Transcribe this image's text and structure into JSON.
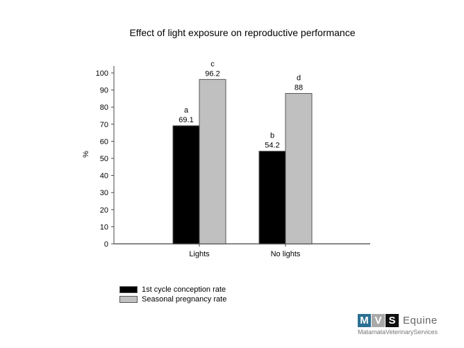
{
  "chart_data": {
    "type": "bar",
    "title": "Effect of light exposure on reproductive performance",
    "xlabel": "",
    "ylabel": "%",
    "ylim": [
      0,
      100
    ],
    "yticks": [
      0,
      10,
      20,
      30,
      40,
      50,
      60,
      70,
      80,
      90,
      100
    ],
    "categories": [
      "Lights",
      "No lights"
    ],
    "series": [
      {
        "name": "1st cycle conception rate",
        "color": "#000000",
        "values": [
          69.1,
          54.2
        ],
        "value_labels": [
          "69.1",
          "54.2"
        ],
        "letters": [
          "a",
          "b"
        ]
      },
      {
        "name": "Seasonal pregnancy rate",
        "color": "#c0c0c0",
        "values": [
          96.2,
          88
        ],
        "value_labels": [
          "96.2",
          "88"
        ],
        "letters": [
          "c",
          "d"
        ]
      }
    ],
    "grid": false,
    "legend_position": "bottom-left"
  },
  "logo": {
    "letters": [
      {
        "char": "M",
        "color": "#2b6f93"
      },
      {
        "char": "V",
        "color": "#a9a9a9"
      },
      {
        "char": "S",
        "color": "#111111"
      }
    ],
    "word": "Equine",
    "subtitle": "MatamataVeterinaryServices"
  }
}
